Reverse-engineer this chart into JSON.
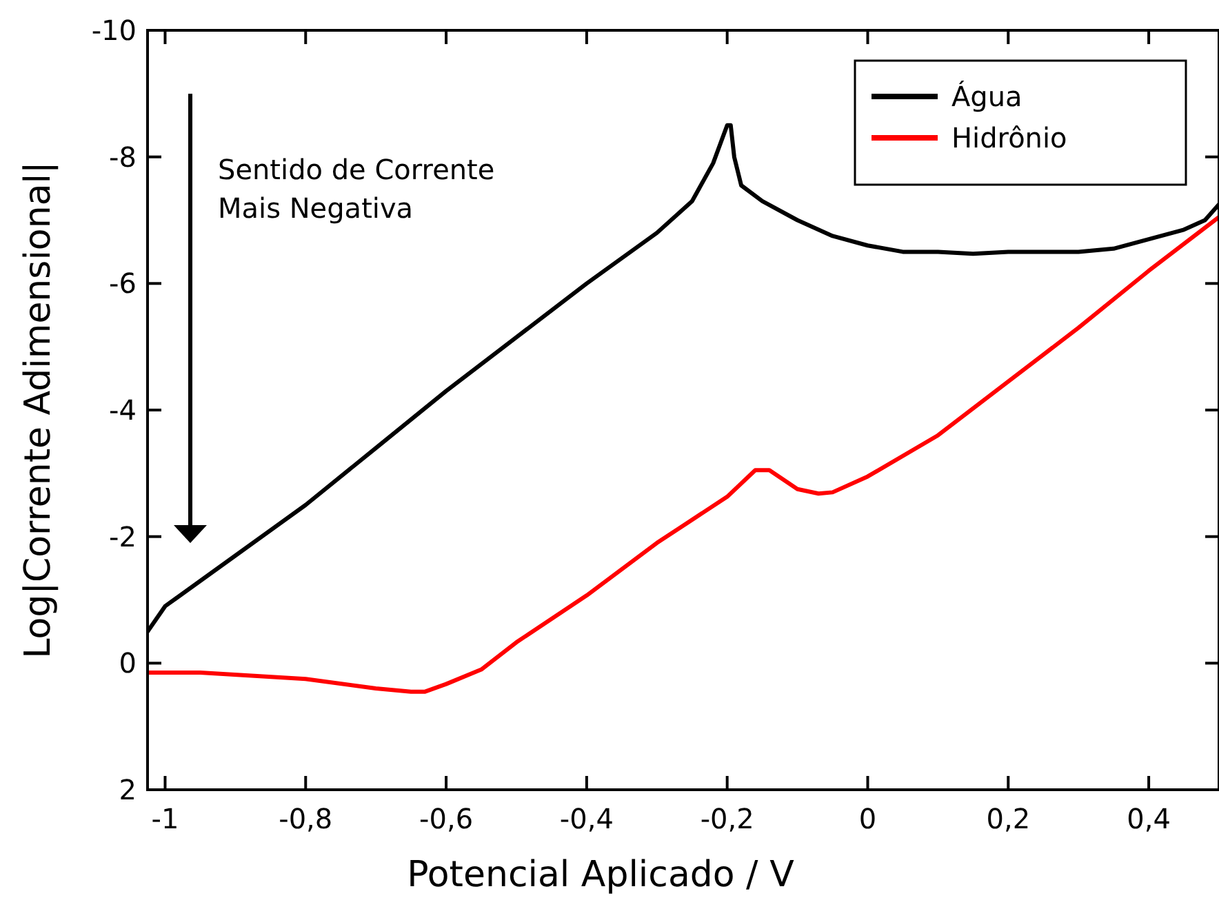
{
  "chart_data": {
    "type": "line",
    "xlabel": "Potencial Aplicado / V",
    "ylabel": "Log|Corrente Adimensional|",
    "xlim": [
      -1.025,
      0.5
    ],
    "ylim": [
      2,
      -10
    ],
    "xticks": [
      {
        "value": -1,
        "label": "-1"
      },
      {
        "value": -0.8,
        "label": "-0,8"
      },
      {
        "value": -0.6,
        "label": "-0,6"
      },
      {
        "value": -0.4,
        "label": "-0,4"
      },
      {
        "value": -0.2,
        "label": "-0,2"
      },
      0,
      {
        "value": 0.2,
        "label": "0,2"
      },
      {
        "value": 0.4,
        "label": "0,4"
      }
    ],
    "yticks": [
      2,
      0,
      -2,
      -4,
      -6,
      -8,
      -10
    ],
    "legend": "top right",
    "grid": false,
    "line_style": "solid",
    "annotations": [
      "Sentido de Corrente\nMais Negativa"
    ],
    "series": [
      {
        "name": "Água",
        "color": "#000000",
        "x": [
          -1.025,
          -1,
          -0.9,
          -0.8,
          -0.7,
          -0.6,
          -0.5,
          -0.4,
          -0.3,
          -0.25,
          -0.22,
          -0.205,
          -0.2,
          -0.195,
          -0.19,
          -0.18,
          -0.15,
          -0.1,
          -0.05,
          0,
          0.05,
          0.1,
          0.15,
          0.2,
          0.3,
          0.35,
          0.4,
          0.45,
          0.48,
          0.5
        ],
        "values": [
          -0.5,
          -0.9,
          -1.7,
          -2.5,
          -3.4,
          -4.3,
          -5.15,
          -6.0,
          -6.8,
          -7.3,
          -7.9,
          -8.35,
          -8.5,
          -8.5,
          -8.0,
          -7.55,
          -7.3,
          -7.0,
          -6.75,
          -6.6,
          -6.5,
          -6.5,
          -6.47,
          -6.5,
          -6.5,
          -6.55,
          -6.7,
          -6.85,
          -7.0,
          -7.25
        ]
      },
      {
        "name": "Hidrônio",
        "color": "#ff0000",
        "x": [
          -1.025,
          -0.95,
          -0.8,
          -0.7,
          -0.65,
          -0.63,
          -0.6,
          -0.55,
          -0.5,
          -0.4,
          -0.3,
          -0.2,
          -0.16,
          -0.14,
          -0.1,
          -0.07,
          -0.05,
          0,
          0.1,
          0.2,
          0.3,
          0.4,
          0.5
        ],
        "values": [
          0.15,
          0.15,
          0.25,
          0.4,
          0.45,
          0.45,
          0.33,
          0.1,
          -0.33,
          -1.07,
          -1.9,
          -2.63,
          -3.05,
          -3.05,
          -2.75,
          -2.68,
          -2.7,
          -2.95,
          -3.6,
          -4.45,
          -5.3,
          -6.2,
          -7.05
        ]
      }
    ]
  }
}
